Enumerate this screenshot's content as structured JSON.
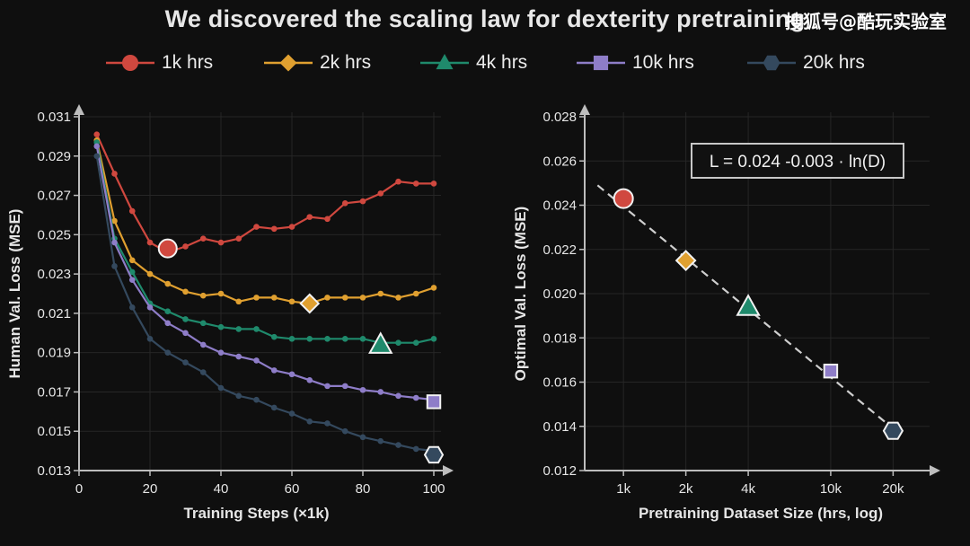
{
  "title": "We discovered the scaling law for dexterity pretraining",
  "watermark": "搜狐号@酷玩实验室",
  "colors": {
    "background": "#0f0f0f",
    "grid": "#262626",
    "axis": "#bdbdbd",
    "dashed_line": "#cfcfcf",
    "1k": "#d0483f",
    "2k": "#e0a030",
    "4k": "#1f8a6c",
    "10k": "#8e7dc8",
    "20k": "#34495e"
  },
  "legend": [
    {
      "label": "1k hrs",
      "marker": "circle",
      "color_key": "1k"
    },
    {
      "label": "2k hrs",
      "marker": "diamond",
      "color_key": "2k"
    },
    {
      "label": "4k hrs",
      "marker": "triangle",
      "color_key": "4k"
    },
    {
      "label": "10k hrs",
      "marker": "square",
      "color_key": "10k"
    },
    {
      "label": "20k hrs",
      "marker": "hexagon",
      "color_key": "20k"
    }
  ],
  "chart_data": [
    {
      "type": "line",
      "xlabel": "Training Steps (×1k)",
      "ylabel": "Human Val. Loss (MSE)",
      "xlim": [
        0,
        100
      ],
      "ylim": [
        0.013,
        0.031
      ],
      "xticks": [
        "0",
        "20",
        "40",
        "60",
        "80",
        "100"
      ],
      "yticks": [
        "0.013",
        "0.015",
        "0.017",
        "0.019",
        "0.021",
        "0.023",
        "0.025",
        "0.027",
        "0.029",
        "0.031"
      ],
      "grid": true,
      "series": [
        {
          "name": "1k hrs",
          "color_key": "1k",
          "marker": "circle",
          "x": [
            5,
            10,
            15,
            20,
            25,
            30,
            35,
            40,
            45,
            50,
            55,
            60,
            65,
            70,
            75,
            80,
            85,
            90,
            95,
            100
          ],
          "y": [
            0.0301,
            0.0281,
            0.0262,
            0.0246,
            0.0241,
            0.0244,
            0.0248,
            0.0246,
            0.0248,
            0.0254,
            0.0253,
            0.0254,
            0.0259,
            0.0258,
            0.0266,
            0.0267,
            0.0271,
            0.0277,
            0.0276,
            0.0276
          ],
          "optimum": {
            "x": 25,
            "y": 0.0243
          }
        },
        {
          "name": "2k hrs",
          "color_key": "2k",
          "marker": "diamond",
          "x": [
            5,
            10,
            15,
            20,
            25,
            30,
            35,
            40,
            45,
            50,
            55,
            60,
            65,
            70,
            75,
            80,
            85,
            90,
            95,
            100
          ],
          "y": [
            0.0298,
            0.0257,
            0.0237,
            0.023,
            0.0225,
            0.0221,
            0.0219,
            0.022,
            0.0216,
            0.0218,
            0.0218,
            0.0216,
            0.0215,
            0.0218,
            0.0218,
            0.0218,
            0.022,
            0.0218,
            0.022,
            0.0223
          ],
          "optimum": {
            "x": 65,
            "y": 0.0215
          }
        },
        {
          "name": "4k hrs",
          "color_key": "4k",
          "marker": "triangle",
          "x": [
            5,
            10,
            15,
            20,
            25,
            30,
            35,
            40,
            45,
            50,
            55,
            60,
            65,
            70,
            75,
            80,
            85,
            90,
            95,
            100
          ],
          "y": [
            0.0297,
            0.0248,
            0.0231,
            0.0215,
            0.0211,
            0.0207,
            0.0205,
            0.0203,
            0.0202,
            0.0202,
            0.0198,
            0.0197,
            0.0197,
            0.0197,
            0.0197,
            0.0197,
            0.0195,
            0.0195,
            0.0195,
            0.0197
          ],
          "optimum": {
            "x": 85,
            "y": 0.0194
          }
        },
        {
          "name": "10k hrs",
          "color_key": "10k",
          "marker": "square",
          "x": [
            5,
            10,
            15,
            20,
            25,
            30,
            35,
            40,
            45,
            50,
            55,
            60,
            65,
            70,
            75,
            80,
            85,
            90,
            95,
            100
          ],
          "y": [
            0.0295,
            0.0246,
            0.0227,
            0.0213,
            0.0205,
            0.02,
            0.0194,
            0.019,
            0.0188,
            0.0186,
            0.0181,
            0.0179,
            0.0176,
            0.0173,
            0.0173,
            0.0171,
            0.017,
            0.0168,
            0.0167,
            0.0166
          ],
          "optimum": {
            "x": 100,
            "y": 0.0165
          }
        },
        {
          "name": "20k hrs",
          "color_key": "20k",
          "marker": "hexagon",
          "x": [
            5,
            10,
            15,
            20,
            25,
            30,
            35,
            40,
            45,
            50,
            55,
            60,
            65,
            70,
            75,
            80,
            85,
            90,
            95,
            100
          ],
          "y": [
            0.029,
            0.0234,
            0.0213,
            0.0197,
            0.019,
            0.0185,
            0.018,
            0.0172,
            0.0168,
            0.0166,
            0.0162,
            0.0159,
            0.0155,
            0.0154,
            0.015,
            0.0147,
            0.0145,
            0.0143,
            0.0141,
            0.014
          ],
          "optimum": {
            "x": 100,
            "y": 0.0138
          }
        }
      ]
    },
    {
      "type": "scatter",
      "xlabel": "Pretraining Dataset Size (hrs, log)",
      "ylabel": "Optimal Val. Loss (MSE)",
      "xscale": "log",
      "xlim": [
        650,
        30000
      ],
      "ylim": [
        0.012,
        0.028
      ],
      "xticks": [
        {
          "value": 1000,
          "label": "1k"
        },
        {
          "value": 2000,
          "label": "2k"
        },
        {
          "value": 4000,
          "label": "4k"
        },
        {
          "value": 10000,
          "label": "10k"
        },
        {
          "value": 20000,
          "label": "20k"
        }
      ],
      "yticks": [
        "0.012",
        "0.014",
        "0.016",
        "0.018",
        "0.020",
        "0.022",
        "0.024",
        "0.026",
        "0.028"
      ],
      "grid": true,
      "points": [
        {
          "x": 1000,
          "y": 0.0243,
          "color_key": "1k",
          "marker": "circle"
        },
        {
          "x": 2000,
          "y": 0.0215,
          "color_key": "2k",
          "marker": "diamond"
        },
        {
          "x": 4000,
          "y": 0.0194,
          "color_key": "4k",
          "marker": "triangle"
        },
        {
          "x": 10000,
          "y": 0.0165,
          "color_key": "10k",
          "marker": "square"
        },
        {
          "x": 20000,
          "y": 0.0138,
          "color_key": "20k",
          "marker": "hexagon"
        }
      ],
      "fit": {
        "equation": "L = 0.024 -0.003 · ln(D)",
        "x_range": [
          750,
          20000
        ],
        "y_range": [
          0.0249,
          0.0139
        ],
        "style": "dashed"
      }
    }
  ]
}
